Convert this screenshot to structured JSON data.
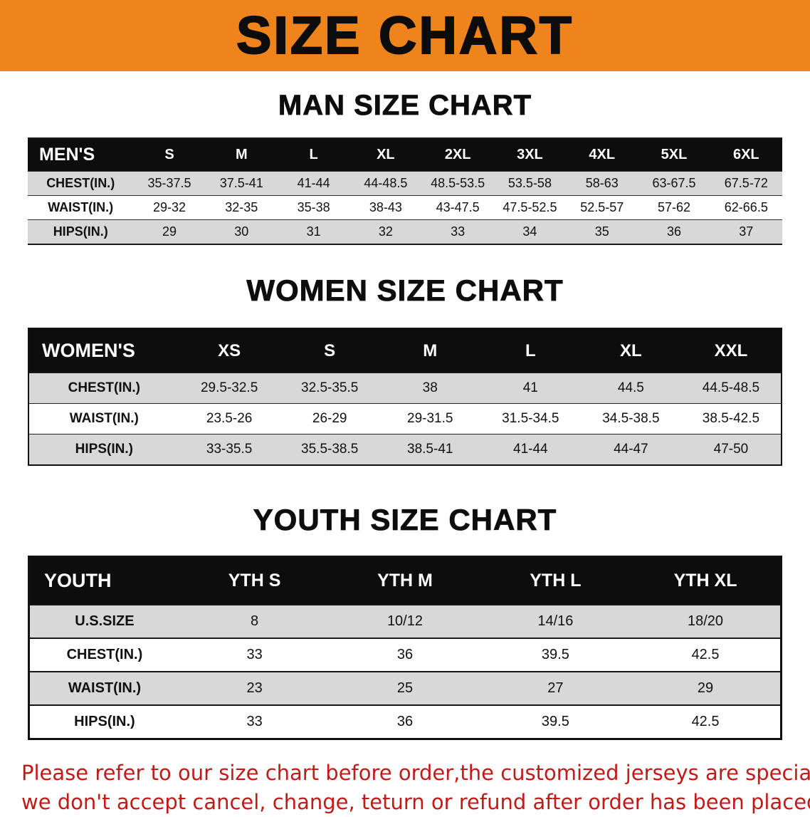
{
  "banner": {
    "title": "SIZE CHART"
  },
  "sections": [
    {
      "heading": "MAN SIZE CHART",
      "table": {
        "header": [
          "MEN'S",
          "S",
          "M",
          "L",
          "XL",
          "2XL",
          "3XL",
          "4XL",
          "5XL",
          "6XL"
        ],
        "rows": [
          [
            "CHEST(IN.)",
            "35-37.5",
            "37.5-41",
            "41-44",
            "44-48.5",
            "48.5-53.5",
            "53.5-58",
            "58-63",
            "63-67.5",
            "67.5-72"
          ],
          [
            "WAIST(IN.)",
            "29-32",
            "32-35",
            "35-38",
            "38-43",
            "43-47.5",
            "47.5-52.5",
            "52.5-57",
            "57-62",
            "62-66.5"
          ],
          [
            "HIPS(IN.)",
            "29",
            "30",
            "31",
            "32",
            "33",
            "34",
            "35",
            "36",
            "37"
          ]
        ]
      }
    },
    {
      "heading": "WOMEN SIZE CHART",
      "table": {
        "header": [
          "WOMEN'S",
          "XS",
          "S",
          "M",
          "L",
          "XL",
          "XXL"
        ],
        "rows": [
          [
            "CHEST(IN.)",
            "29.5-32.5",
            "32.5-35.5",
            "38",
            "41",
            "44.5",
            "44.5-48.5"
          ],
          [
            "WAIST(IN.)",
            "23.5-26",
            "26-29",
            "29-31.5",
            "31.5-34.5",
            "34.5-38.5",
            "38.5-42.5"
          ],
          [
            "HIPS(IN.)",
            "33-35.5",
            "35.5-38.5",
            "38.5-41",
            "41-44",
            "44-47",
            "47-50"
          ]
        ]
      }
    },
    {
      "heading": "YOUTH SIZE CHART",
      "table": {
        "header": [
          "YOUTH",
          "YTH S",
          "YTH M",
          "YTH L",
          "YTH XL"
        ],
        "rows": [
          [
            "U.S.SIZE",
            "8",
            "10/12",
            "14/16",
            "18/20"
          ],
          [
            "CHEST(IN.)",
            "33",
            "36",
            "39.5",
            "42.5"
          ],
          [
            "WAIST(IN.)",
            "23",
            "25",
            "27",
            "29"
          ],
          [
            "HIPS(IN.)",
            "33",
            "36",
            "39.5",
            "42.5"
          ]
        ]
      }
    }
  ],
  "disclaimer": {
    "line1": "Please refer to our size chart before order,the customized jerseys are special products,",
    "line2": "we don't accept cancel, change, teturn or refund after order has been placed!"
  },
  "colors": {
    "banner_orange": "#F0841C",
    "header_black": "#0D0D0D",
    "row_gray": "#D8D8D8",
    "disclaimer_red": "#C11B17",
    "text_black": "#111111"
  }
}
